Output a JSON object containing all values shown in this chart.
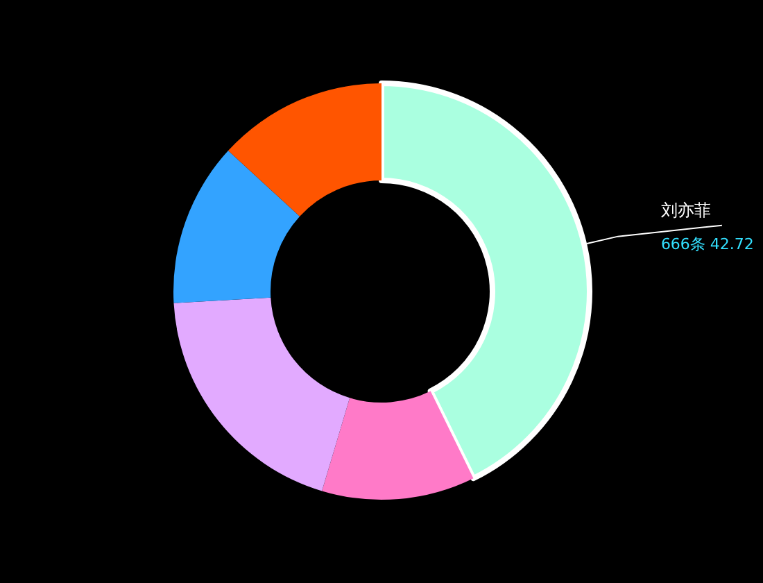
{
  "chart_data": {
    "type": "donut",
    "categories": [
      "刘亦菲",
      null,
      null,
      null,
      null
    ],
    "values": [
      42.72,
      11.9,
      19.5,
      12.7,
      13.18
    ],
    "colors": [
      "#aaffe0",
      "#ff7ac8",
      "#e2aaff",
      "#33a3ff",
      "#ff5500"
    ],
    "value_labels": [
      "666条 42.72",
      null,
      null,
      null,
      null
    ]
  }
}
